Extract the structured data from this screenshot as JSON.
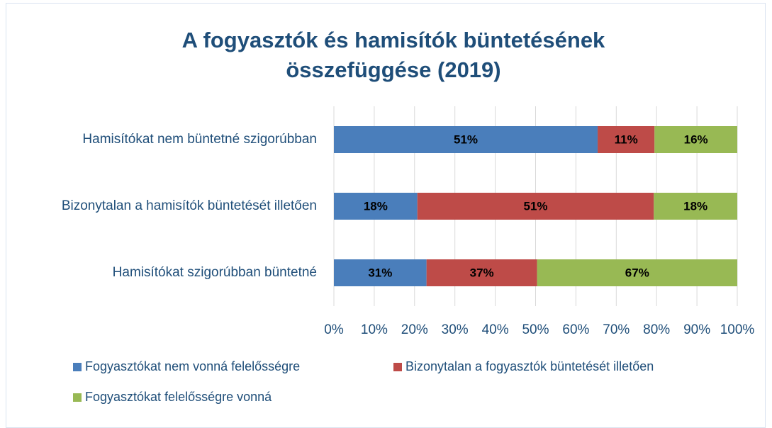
{
  "chart_data": {
    "type": "bar",
    "orientation": "horizontal",
    "stacked": "percent",
    "title": "A fogyasztók és hamisítók büntetésének összefüggése (2019)",
    "categories": [
      "Hamisítókat nem büntetné szigorúbban",
      "Bizonytalan a hamisítók büntetését illetően",
      "Hamisítókat szigorúbban büntetné"
    ],
    "series": [
      {
        "name": "Fogyasztókat nem vonná felelősségre",
        "color": "#4a7ebb",
        "values": [
          51,
          18,
          31
        ],
        "value_labels": [
          "51%",
          "18%",
          "31%"
        ]
      },
      {
        "name": "Bizonytalan a fogyasztók büntetését illetően",
        "color": "#be4b48",
        "values": [
          11,
          51,
          37
        ],
        "value_labels": [
          "11%",
          "51%",
          "37%"
        ]
      },
      {
        "name": "Fogyasztókat felelősségre vonná",
        "color": "#98b954",
        "values": [
          16,
          18,
          67
        ],
        "value_labels": [
          "16%",
          "18%",
          "67%"
        ]
      }
    ],
    "xlim": [
      0,
      100
    ],
    "xticks": [
      {
        "value": 0,
        "label": "0%"
      },
      {
        "value": 10,
        "label": "10%"
      },
      {
        "value": 20,
        "label": "20%"
      },
      {
        "value": 30,
        "label": "30%"
      },
      {
        "value": 40,
        "label": "40%"
      },
      {
        "value": 50,
        "label": "50%"
      },
      {
        "value": 60,
        "label": "60%"
      },
      {
        "value": 70,
        "label": "70%"
      },
      {
        "value": 80,
        "label": "80%"
      },
      {
        "value": 90,
        "label": "90%"
      },
      {
        "value": 100,
        "label": "100%"
      }
    ],
    "grid": true,
    "legend": "bottom"
  }
}
